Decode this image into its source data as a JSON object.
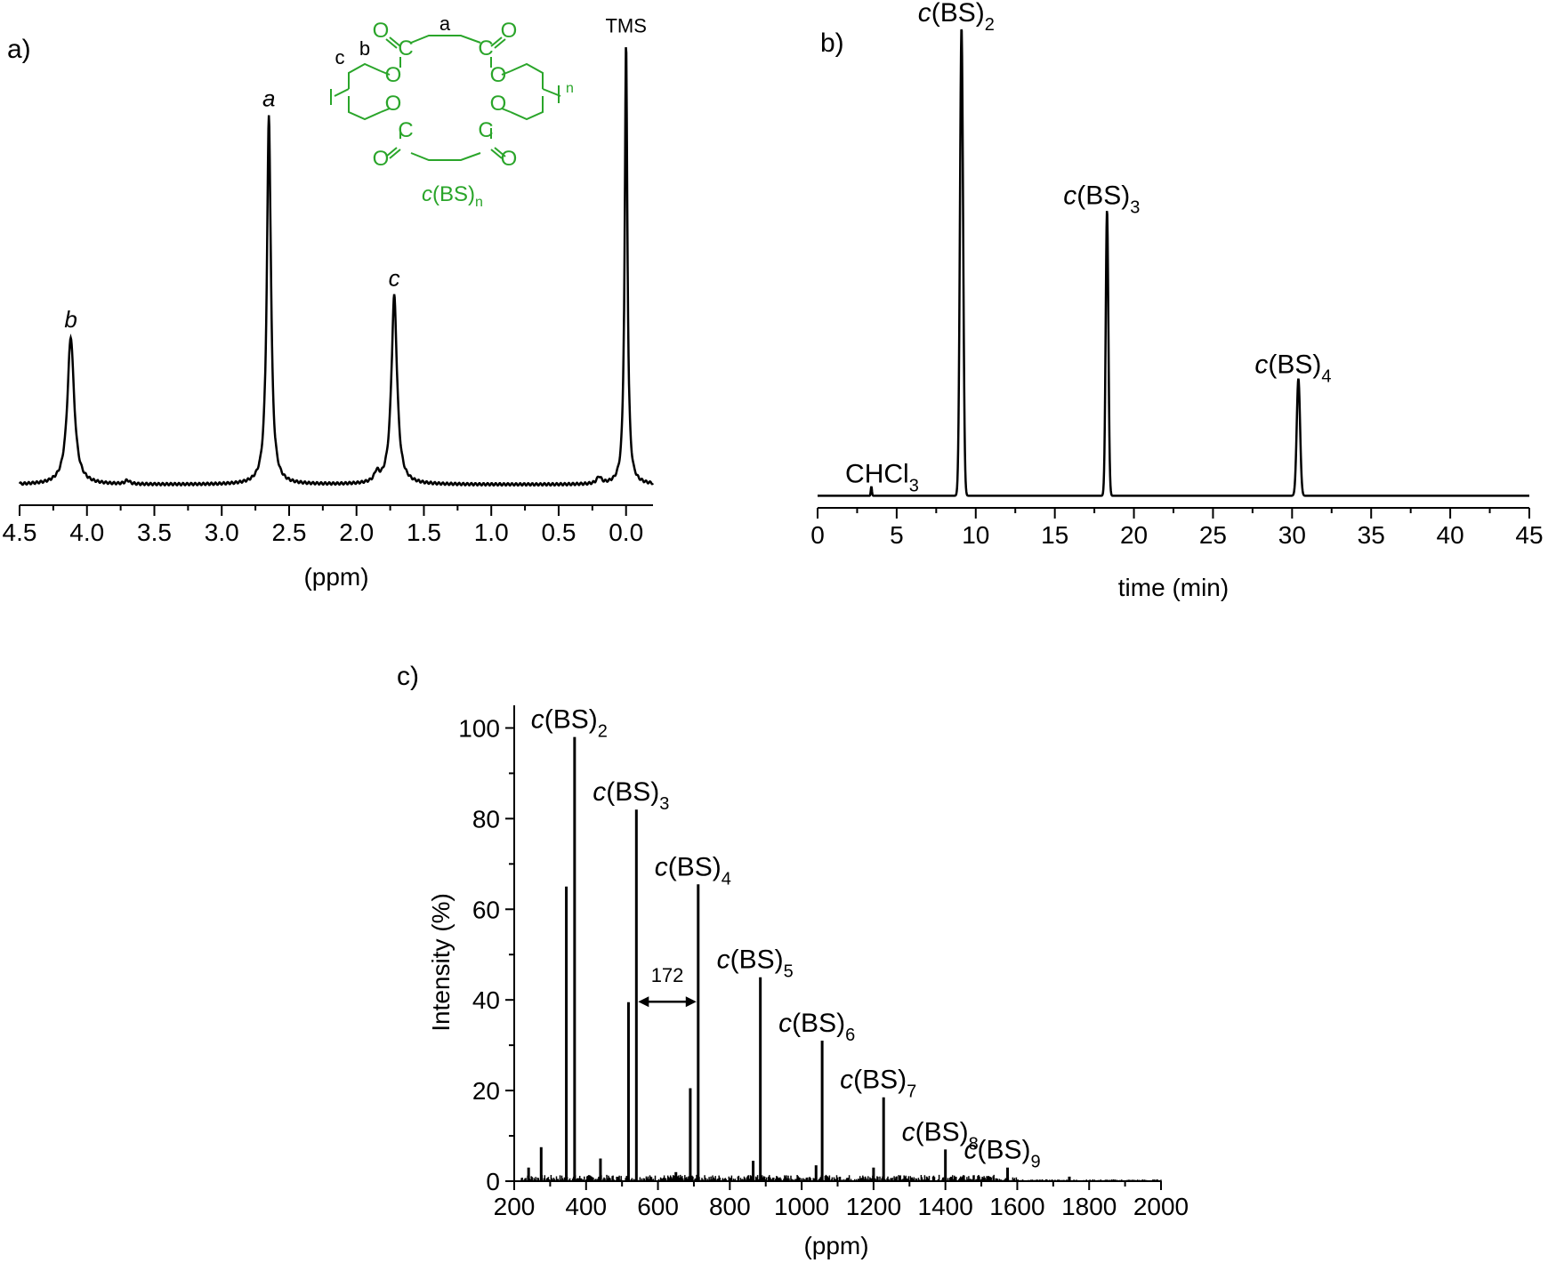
{
  "chart_data": [
    {
      "panel": "a)",
      "type": "line",
      "xlabel": "(ppm)",
      "ylabel": "",
      "x_reversed": true,
      "xlim": [
        4.5,
        -0.2
      ],
      "xticks": [
        "4.5",
        "4.0",
        "3.5",
        "3.0",
        "2.5",
        "2.0",
        "1.5",
        "1.0",
        "0.5",
        "0.0"
      ],
      "ylim": [
        0,
        100
      ],
      "peaks": [
        {
          "label": "b",
          "x": 4.12,
          "height": 32,
          "width": 0.03
        },
        {
          "label": "a",
          "x": 2.65,
          "height": 80,
          "width": 0.018
        },
        {
          "label": "c",
          "x": 1.72,
          "height": 41,
          "width": 0.025
        },
        {
          "label": "TMS",
          "x": 0.0,
          "height": 96,
          "width": 0.012
        }
      ],
      "minor_peaks": [
        {
          "x": 1.85,
          "height": 2
        },
        {
          "x": 3.7,
          "height": 0.8
        },
        {
          "x": 0.2,
          "height": 1.5
        }
      ],
      "structure": {
        "label_main": "c(BS)",
        "label_sub": "n",
        "atom_label_a": "a",
        "atom_label_b": "b",
        "atom_label_c": "c",
        "atom_C": "C",
        "atom_O": "O",
        "repeat_sub": "n",
        "color": "#2aa52a"
      }
    },
    {
      "panel": "b)",
      "type": "line",
      "xlabel": "time (min)",
      "ylabel": "",
      "xlim": [
        0,
        45
      ],
      "xticks": [
        "0",
        "5",
        "10",
        "15",
        "20",
        "25",
        "30",
        "35",
        "40",
        "45"
      ],
      "ylim": [
        0,
        100
      ],
      "peaks": [
        {
          "label": "c(BS)",
          "sub": "2",
          "x": 9.1,
          "height": 100,
          "width": 0.14
        },
        {
          "label": "c(BS)",
          "sub": "3",
          "x": 18.3,
          "height": 61,
          "width": 0.12
        },
        {
          "label": "c(BS)",
          "sub": "4",
          "x": 30.4,
          "height": 25,
          "width": 0.15
        }
      ],
      "minor_peaks": [
        {
          "label": "CHCl",
          "sub": "3",
          "x": 3.4,
          "height": 2
        }
      ]
    },
    {
      "panel": "c)",
      "type": "bar",
      "xlabel": "(ppm)",
      "ylabel": "Intensity (%)",
      "xlim": [
        200,
        2000
      ],
      "ylim": [
        0,
        105
      ],
      "xticks": [
        "200",
        "400",
        "600",
        "800",
        "1000",
        "1200",
        "1400",
        "1600",
        "1800",
        "2000"
      ],
      "yticks": [
        "0",
        "20",
        "40",
        "60",
        "80",
        "100"
      ],
      "x": [
        240,
        275,
        345,
        368,
        440,
        518,
        540,
        650,
        690,
        712,
        865,
        885,
        1040,
        1057,
        1200,
        1228,
        1400,
        1573,
        1745
      ],
      "values": [
        3,
        7.5,
        65,
        98,
        5,
        39.5,
        82,
        2,
        20.5,
        65.5,
        4.5,
        45,
        3.5,
        31,
        3,
        18.5,
        7,
        3,
        1
      ],
      "labels": [
        {
          "main": "c(BS)",
          "sub": "2",
          "x": 368,
          "y": 98
        },
        {
          "main": "c(BS)",
          "sub": "3",
          "x": 540,
          "y": 82
        },
        {
          "main": "c(BS)",
          "sub": "4",
          "x": 712,
          "y": 65.5
        },
        {
          "main": "c(BS)",
          "sub": "5",
          "x": 885,
          "y": 45
        },
        {
          "main": "c(BS)",
          "sub": "6",
          "x": 1057,
          "y": 31
        },
        {
          "main": "c(BS)",
          "sub": "7",
          "x": 1228,
          "y": 18.5
        },
        {
          "main": "c(BS)",
          "sub": "8",
          "x": 1400,
          "y": 7
        },
        {
          "main": "c(BS)",
          "sub": "9",
          "x": 1573,
          "y": 3
        }
      ],
      "annotation": {
        "text": "172",
        "from": 540,
        "to": 712,
        "y": 40
      }
    }
  ]
}
